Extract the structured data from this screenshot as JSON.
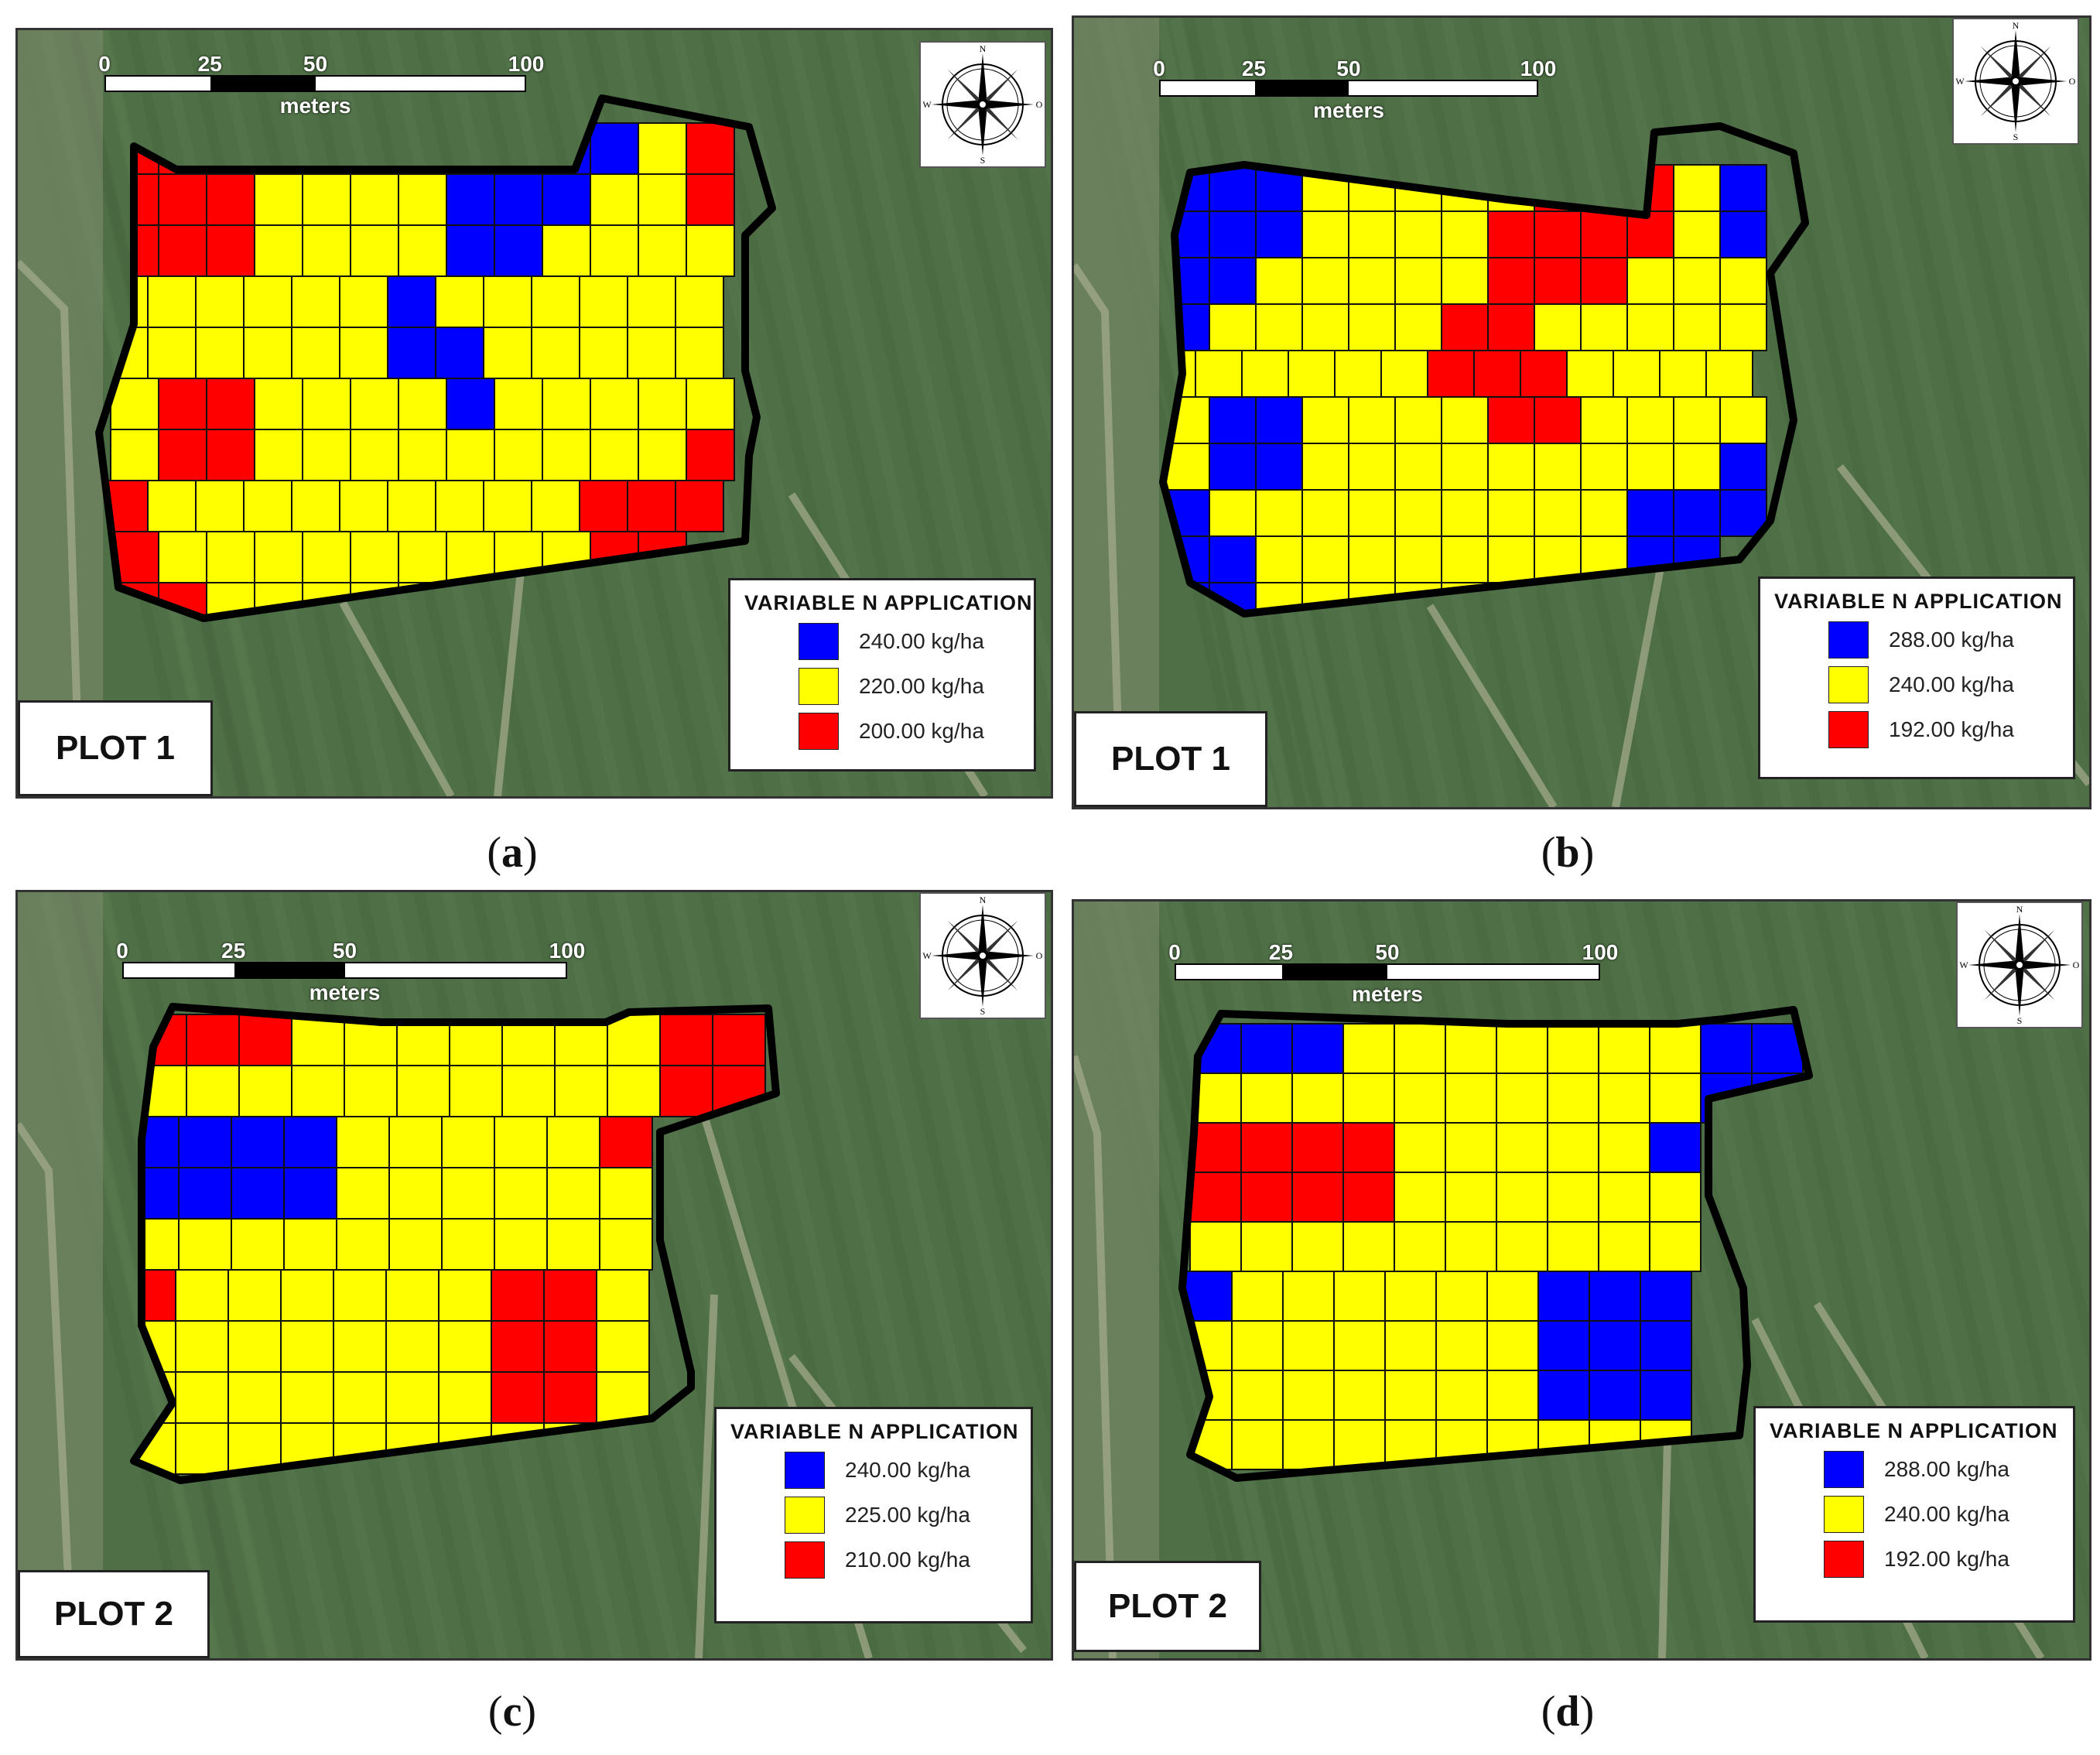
{
  "colors": {
    "blue": "#0000ff",
    "yellow": "#ffff00",
    "red": "#ff0000"
  },
  "scale": {
    "ticks": [
      "0",
      "25",
      "50",
      "100"
    ],
    "unit": "meters"
  },
  "compass": {
    "n": "N",
    "s": "S",
    "w": "W",
    "e": "O"
  },
  "legend_title": "VARIABLE N APPLICATION",
  "panels": [
    {
      "id": "a",
      "caption_letter": "a",
      "plot_label": "PLOT 1",
      "legend": [
        {
          "color": "blue",
          "label": "240.00 kg/ha"
        },
        {
          "color": "yellow",
          "label": "220.00 kg/ha"
        },
        {
          "color": "red",
          "label": "200.00 kg/ha"
        }
      ],
      "grid": [
        "RRR.YYYYBBBYR",
        "RRRYYYYBBBYYR",
        "RRRYYYYBBYYYY",
        "YYYYYYBYYYYYY",
        "YYYYYYBBYYYYY",
        "YRRYYYYBYYYYY",
        "YRRYYYYYYYYYR",
        "RYYYYYYYYYRRR",
        "RYYYYYYYYYRR.",
        "RRYYYYYYYYY.."
      ]
    },
    {
      "id": "b",
      "caption_letter": "b",
      "plot_label": "PLOT 1",
      "legend": [
        {
          "color": "blue",
          "label": "288.00 kg/ha"
        },
        {
          "color": "yellow",
          "label": "240.00 kg/ha"
        },
        {
          "color": "red",
          "label": "192.00 kg/ha"
        }
      ],
      "grid": [
        "BBBYYYYYRRRYB",
        "BBBYYYYRRRRYB",
        "BBYYYYYRRRYYY",
        "BYYYYYRRYYYYY",
        "YYYYYYRRRYYYY",
        "YBBYYYYRRYYYY",
        "YBBYYYYYYYYYB",
        "BYYYYYYYYYBBB",
        "BBYYYYYYYYBB.",
        "BBYYYYYYYYY.."
      ]
    },
    {
      "id": "c",
      "caption_letter": "c",
      "plot_label": "PLOT 2",
      "legend": [
        {
          "color": "blue",
          "label": "240.00 kg/ha"
        },
        {
          "color": "yellow",
          "label": "225.00 kg/ha"
        },
        {
          "color": "red",
          "label": "210.00 kg/ha"
        }
      ],
      "grid": [
        "RRRYYYYYYYRR",
        "YYYYYYYYYYRR",
        "BBBBYYYYYR..",
        "BBBBYYYYYY..",
        "YYYYYYYYYY..",
        "RYYYYYYRRY..",
        "YYYYYYYRRY..",
        "YYYYYYYRRY..",
        "YYYYYYYYYY.."
      ]
    },
    {
      "id": "d",
      "caption_letter": "d",
      "plot_label": "PLOT 2",
      "legend": [
        {
          "color": "blue",
          "label": "288.00 kg/ha"
        },
        {
          "color": "yellow",
          "label": "240.00 kg/ha"
        },
        {
          "color": "red",
          "label": "192.00 kg/ha"
        }
      ],
      "grid": [
        "BBBYYYYYYYBB",
        "YYYYYYYYYYBB",
        "RRRRYYYYYB..",
        "RRRRYYYYYY..",
        "YYYYYYYYYY..",
        "BYYYYYYBBB..",
        "YYYYYYYBBB..",
        "YYYYYYYBBB..",
        "YYYYYYYYYY.."
      ]
    }
  ]
}
